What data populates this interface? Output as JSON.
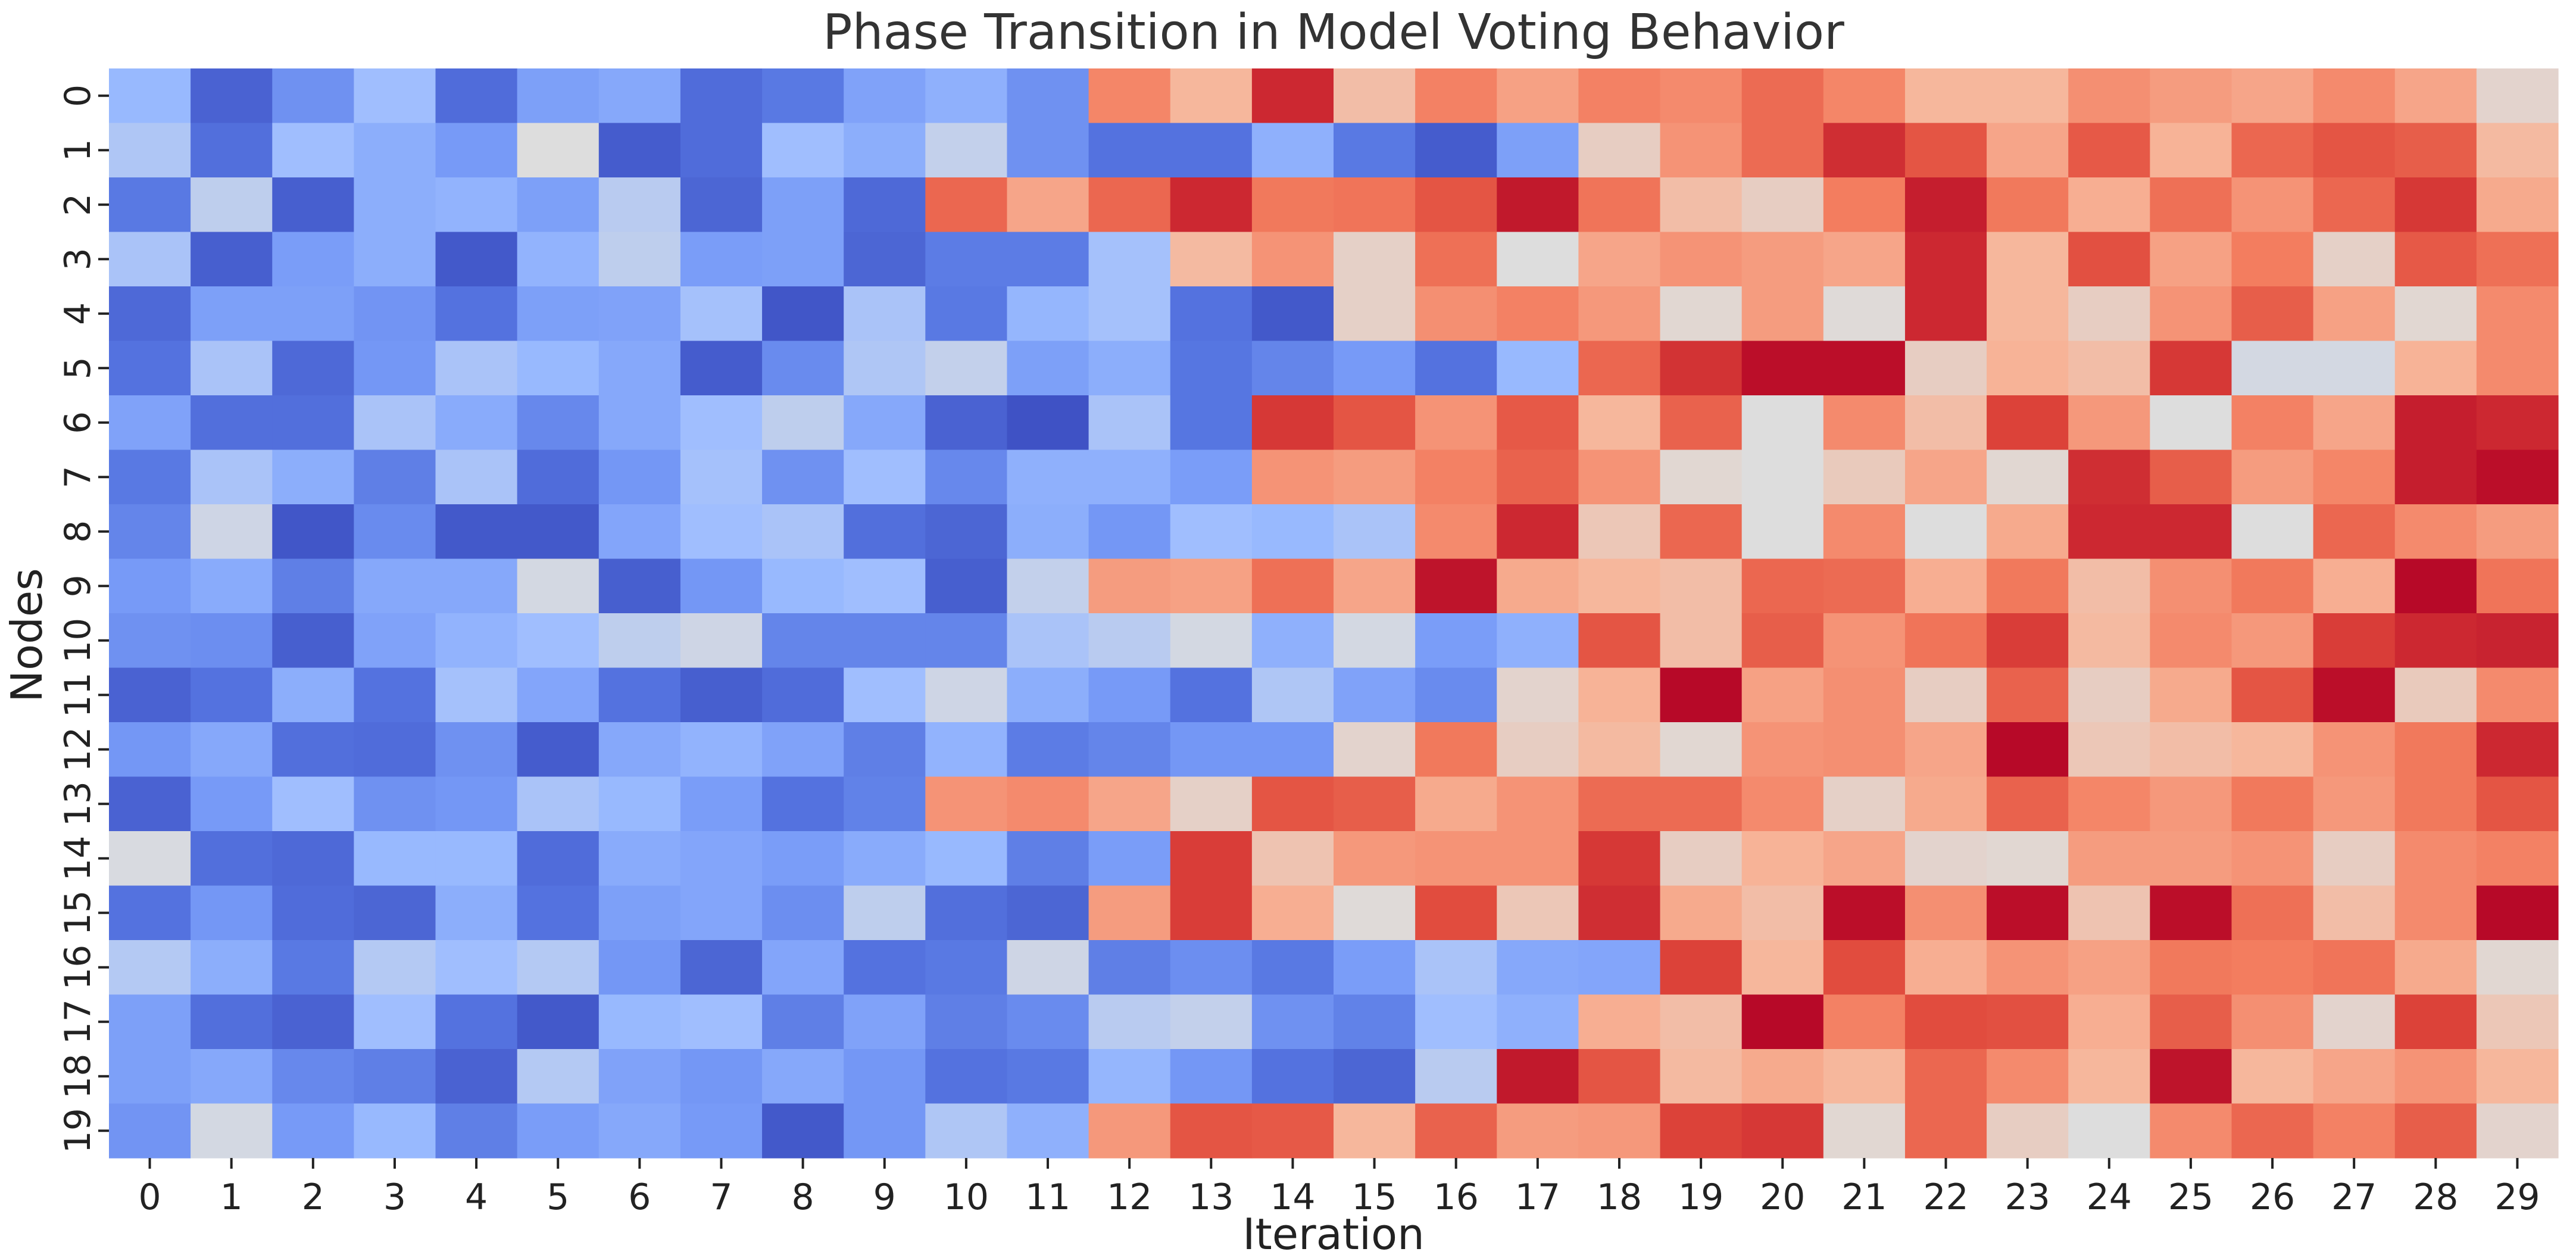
{
  "chart_data": {
    "type": "heatmap",
    "title": "Phase Transition in Model Voting Behavior",
    "xlabel": "Iteration",
    "ylabel": "Nodes",
    "x_labels": [
      "0",
      "1",
      "2",
      "3",
      "4",
      "5",
      "6",
      "7",
      "8",
      "9",
      "10",
      "11",
      "12",
      "13",
      "14",
      "15",
      "16",
      "17",
      "18",
      "19",
      "20",
      "21",
      "22",
      "23",
      "24",
      "25",
      "26",
      "27",
      "28",
      "29"
    ],
    "y_labels": [
      "0",
      "1",
      "2",
      "3",
      "4",
      "5",
      "6",
      "7",
      "8",
      "9",
      "10",
      "11",
      "12",
      "13",
      "14",
      "15",
      "16",
      "17",
      "18",
      "19"
    ],
    "value_range": [
      0,
      1
    ],
    "colormap": "coolwarm",
    "colorbar": false,
    "values": [
      [
        0.36,
        0.07,
        0.22,
        0.38,
        0.1,
        0.27,
        0.3,
        0.1,
        0.14,
        0.28,
        0.33,
        0.22,
        0.73,
        0.62,
        0.93,
        0.6,
        0.74,
        0.67,
        0.74,
        0.72,
        0.79,
        0.73,
        0.62,
        0.62,
        0.71,
        0.68,
        0.66,
        0.72,
        0.66,
        0.53
      ],
      [
        0.41,
        0.11,
        0.38,
        0.32,
        0.25,
        0.5,
        0.05,
        0.1,
        0.38,
        0.32,
        0.45,
        0.22,
        0.12,
        0.12,
        0.33,
        0.14,
        0.05,
        0.27,
        0.55,
        0.7,
        0.79,
        0.92,
        0.84,
        0.66,
        0.83,
        0.63,
        0.8,
        0.84,
        0.82,
        0.61
      ],
      [
        0.14,
        0.44,
        0.06,
        0.32,
        0.34,
        0.27,
        0.43,
        0.08,
        0.27,
        0.09,
        0.8,
        0.66,
        0.8,
        0.93,
        0.76,
        0.77,
        0.84,
        0.96,
        0.77,
        0.6,
        0.55,
        0.75,
        0.95,
        0.76,
        0.64,
        0.78,
        0.7,
        0.8,
        0.9,
        0.65
      ],
      [
        0.4,
        0.06,
        0.26,
        0.32,
        0.04,
        0.34,
        0.44,
        0.26,
        0.27,
        0.08,
        0.15,
        0.15,
        0.39,
        0.61,
        0.7,
        0.54,
        0.78,
        0.5,
        0.66,
        0.7,
        0.68,
        0.66,
        0.93,
        0.62,
        0.85,
        0.67,
        0.75,
        0.54,
        0.83,
        0.78
      ],
      [
        0.09,
        0.27,
        0.27,
        0.23,
        0.12,
        0.27,
        0.28,
        0.39,
        0.03,
        0.4,
        0.14,
        0.35,
        0.39,
        0.12,
        0.04,
        0.54,
        0.71,
        0.74,
        0.69,
        0.52,
        0.68,
        0.51,
        0.93,
        0.62,
        0.55,
        0.7,
        0.82,
        0.67,
        0.52,
        0.72
      ],
      [
        0.12,
        0.4,
        0.09,
        0.24,
        0.4,
        0.36,
        0.3,
        0.05,
        0.2,
        0.41,
        0.45,
        0.27,
        0.32,
        0.13,
        0.18,
        0.25,
        0.12,
        0.36,
        0.8,
        0.91,
        0.98,
        0.98,
        0.55,
        0.63,
        0.6,
        0.9,
        0.48,
        0.48,
        0.63,
        0.72
      ],
      [
        0.28,
        0.11,
        0.11,
        0.4,
        0.31,
        0.19,
        0.3,
        0.38,
        0.44,
        0.3,
        0.07,
        0.02,
        0.4,
        0.13,
        0.9,
        0.84,
        0.7,
        0.83,
        0.62,
        0.81,
        0.5,
        0.72,
        0.6,
        0.88,
        0.69,
        0.5,
        0.74,
        0.66,
        0.95,
        0.93
      ],
      [
        0.14,
        0.4,
        0.32,
        0.16,
        0.4,
        0.1,
        0.24,
        0.39,
        0.22,
        0.38,
        0.19,
        0.33,
        0.33,
        0.26,
        0.7,
        0.68,
        0.74,
        0.81,
        0.7,
        0.52,
        0.5,
        0.56,
        0.66,
        0.52,
        0.92,
        0.82,
        0.68,
        0.73,
        0.95,
        0.98
      ],
      [
        0.18,
        0.47,
        0.03,
        0.2,
        0.04,
        0.04,
        0.29,
        0.38,
        0.4,
        0.11,
        0.08,
        0.32,
        0.24,
        0.38,
        0.36,
        0.4,
        0.72,
        0.93,
        0.57,
        0.8,
        0.5,
        0.72,
        0.5,
        0.65,
        0.93,
        0.93,
        0.5,
        0.8,
        0.72,
        0.68
      ],
      [
        0.25,
        0.31,
        0.16,
        0.3,
        0.3,
        0.48,
        0.06,
        0.24,
        0.36,
        0.38,
        0.06,
        0.45,
        0.68,
        0.67,
        0.78,
        0.66,
        0.97,
        0.65,
        0.62,
        0.6,
        0.8,
        0.79,
        0.64,
        0.76,
        0.6,
        0.71,
        0.76,
        0.64,
        0.99,
        0.77
      ],
      [
        0.22,
        0.21,
        0.06,
        0.28,
        0.34,
        0.38,
        0.44,
        0.47,
        0.18,
        0.18,
        0.18,
        0.4,
        0.43,
        0.48,
        0.33,
        0.48,
        0.26,
        0.33,
        0.84,
        0.6,
        0.82,
        0.7,
        0.77,
        0.89,
        0.61,
        0.72,
        0.69,
        0.89,
        0.93,
        0.94
      ],
      [
        0.07,
        0.12,
        0.32,
        0.12,
        0.39,
        0.29,
        0.12,
        0.06,
        0.1,
        0.38,
        0.47,
        0.32,
        0.25,
        0.12,
        0.41,
        0.28,
        0.2,
        0.53,
        0.63,
        0.99,
        0.67,
        0.71,
        0.55,
        0.81,
        0.55,
        0.65,
        0.84,
        0.98,
        0.56,
        0.72
      ],
      [
        0.24,
        0.3,
        0.11,
        0.1,
        0.22,
        0.05,
        0.3,
        0.34,
        0.28,
        0.16,
        0.34,
        0.15,
        0.18,
        0.24,
        0.24,
        0.53,
        0.76,
        0.55,
        0.61,
        0.52,
        0.7,
        0.71,
        0.66,
        0.99,
        0.57,
        0.6,
        0.62,
        0.7,
        0.76,
        0.93
      ],
      [
        0.07,
        0.25,
        0.38,
        0.22,
        0.24,
        0.4,
        0.36,
        0.26,
        0.12,
        0.17,
        0.7,
        0.72,
        0.66,
        0.54,
        0.84,
        0.82,
        0.65,
        0.7,
        0.79,
        0.79,
        0.72,
        0.54,
        0.65,
        0.81,
        0.73,
        0.69,
        0.76,
        0.69,
        0.76,
        0.84
      ],
      [
        0.49,
        0.11,
        0.09,
        0.36,
        0.36,
        0.1,
        0.31,
        0.29,
        0.26,
        0.31,
        0.36,
        0.16,
        0.26,
        0.89,
        0.58,
        0.69,
        0.7,
        0.7,
        0.9,
        0.55,
        0.63,
        0.66,
        0.53,
        0.52,
        0.68,
        0.68,
        0.7,
        0.55,
        0.72,
        0.74
      ],
      [
        0.12,
        0.24,
        0.1,
        0.08,
        0.32,
        0.12,
        0.27,
        0.29,
        0.21,
        0.44,
        0.11,
        0.08,
        0.68,
        0.89,
        0.64,
        0.51,
        0.86,
        0.57,
        0.92,
        0.65,
        0.6,
        0.98,
        0.71,
        0.98,
        0.58,
        0.98,
        0.78,
        0.6,
        0.72,
        0.99
      ],
      [
        0.42,
        0.32,
        0.14,
        0.42,
        0.38,
        0.42,
        0.24,
        0.08,
        0.29,
        0.12,
        0.14,
        0.47,
        0.16,
        0.21,
        0.14,
        0.26,
        0.4,
        0.3,
        0.29,
        0.88,
        0.62,
        0.86,
        0.64,
        0.7,
        0.67,
        0.76,
        0.75,
        0.77,
        0.65,
        0.52
      ],
      [
        0.27,
        0.11,
        0.07,
        0.38,
        0.12,
        0.04,
        0.36,
        0.38,
        0.16,
        0.28,
        0.16,
        0.2,
        0.43,
        0.45,
        0.22,
        0.17,
        0.38,
        0.33,
        0.64,
        0.6,
        0.99,
        0.74,
        0.86,
        0.85,
        0.64,
        0.82,
        0.71,
        0.53,
        0.88,
        0.57
      ],
      [
        0.27,
        0.3,
        0.19,
        0.16,
        0.07,
        0.42,
        0.28,
        0.24,
        0.3,
        0.24,
        0.12,
        0.14,
        0.35,
        0.24,
        0.12,
        0.08,
        0.43,
        0.96,
        0.84,
        0.61,
        0.65,
        0.62,
        0.8,
        0.72,
        0.62,
        0.97,
        0.62,
        0.66,
        0.7,
        0.62
      ],
      [
        0.23,
        0.48,
        0.25,
        0.36,
        0.16,
        0.26,
        0.3,
        0.25,
        0.04,
        0.24,
        0.41,
        0.33,
        0.69,
        0.84,
        0.83,
        0.62,
        0.81,
        0.68,
        0.69,
        0.88,
        0.9,
        0.52,
        0.8,
        0.55,
        0.5,
        0.72,
        0.8,
        0.74,
        0.82,
        0.53
      ]
    ]
  }
}
